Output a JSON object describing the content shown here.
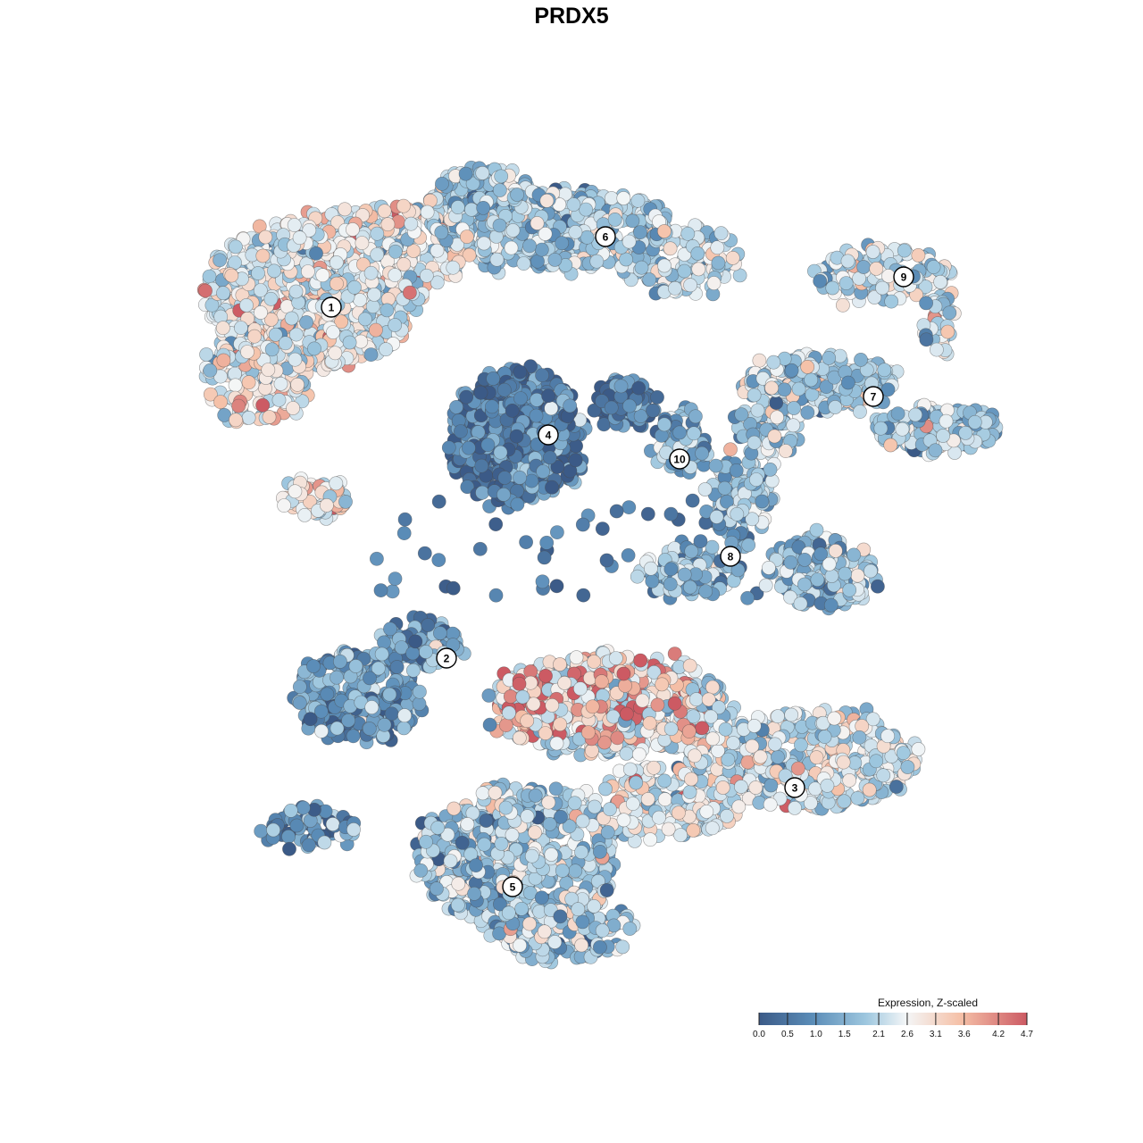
{
  "chart_data": {
    "type": "scatter",
    "title": "PRDX5",
    "xlabel": "",
    "ylabel": "",
    "grid": false,
    "color_scale": {
      "label": "Expression, Z-scaled",
      "min": 0.0,
      "max": 4.7,
      "ticks": [
        "0.0",
        "0.5",
        "1.0",
        "1.5",
        "2.1",
        "2.6",
        "3.1",
        "3.6",
        "4.2",
        "4.7"
      ],
      "palette": [
        "#3b5a87",
        "#5b8db8",
        "#9ec7df",
        "#f4f6f7",
        "#f5c1a8",
        "#cc5a63"
      ]
    },
    "legend_placement": "bottom-right",
    "clusters": [
      {
        "label": "1",
        "mean_expression": 2.7
      },
      {
        "label": "2",
        "mean_expression": 1.2
      },
      {
        "label": "3",
        "mean_expression": 2.5
      },
      {
        "label": "4",
        "mean_expression": 0.6
      },
      {
        "label": "5",
        "mean_expression": 1.9
      },
      {
        "label": "6",
        "mean_expression": 2.0
      },
      {
        "label": "7",
        "mean_expression": 1.9
      },
      {
        "label": "8",
        "mean_expression": 1.8
      },
      {
        "label": "9",
        "mean_expression": 2.3
      },
      {
        "label": "10",
        "mean_expression": 1.4
      }
    ]
  }
}
